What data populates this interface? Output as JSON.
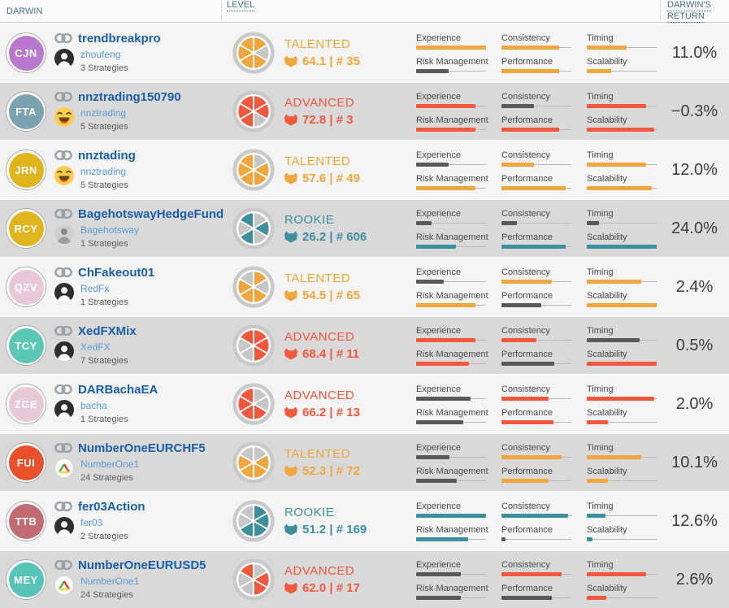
{
  "header": {
    "darwin_label": "DARWIN",
    "level_label": "LEVEL",
    "return_label_line1": "DARWIN'S",
    "return_label_line2": "RETURN"
  },
  "attribute_labels": [
    "Experience",
    "Consistency",
    "Timing",
    "Risk Management",
    "Performance",
    "Scalability"
  ],
  "colors": {
    "talented": "#EFA63C",
    "advanced": "#F3573C",
    "rookie": "#3E8F9E",
    "dark_bar": "#595959",
    "pie_empty": "#C6C6C6",
    "track": "#B9B9B9"
  },
  "rows": [
    {
      "ticker": "CJN",
      "ticker_color": "#B878CC",
      "name": "trendbreakpro",
      "owner": "zhoufeng",
      "strategies": "3 Strategies",
      "avatar": "person",
      "level": {
        "name": "TALENTED",
        "type": "talented",
        "score_text": "64.1 | # 35"
      },
      "pie": [
        1,
        0,
        1,
        1,
        1,
        1
      ],
      "bars": [
        {
          "v": 100,
          "dark": false
        },
        {
          "v": 82,
          "dark": false
        },
        {
          "v": 57,
          "dark": false
        },
        {
          "v": 47,
          "dark": true
        },
        {
          "v": 82,
          "dark": false
        },
        {
          "v": 35,
          "dark": false
        }
      ],
      "return": "11.0%"
    },
    {
      "ticker": "FTA",
      "ticker_color": "#7BA3AF",
      "name": "nnztrading150790",
      "owner": "nnztrading",
      "strategies": "5 Strategies",
      "avatar": "emoji",
      "level": {
        "name": "ADVANCED",
        "type": "advanced",
        "score_text": "72.8 | # 3"
      },
      "pie": [
        1,
        1,
        0,
        1,
        1,
        1
      ],
      "bars": [
        {
          "v": 85,
          "dark": false
        },
        {
          "v": 47,
          "dark": true
        },
        {
          "v": 85,
          "dark": false
        },
        {
          "v": 85,
          "dark": false
        },
        {
          "v": 82,
          "dark": false
        },
        {
          "v": 97,
          "dark": false
        }
      ],
      "return": "−0.3%"
    },
    {
      "ticker": "JRN",
      "ticker_color": "#E0B41C",
      "name": "nnztading",
      "owner": "nnztrading",
      "strategies": "5 Strategies",
      "avatar": "emoji",
      "level": {
        "name": "TALENTED",
        "type": "talented",
        "score_text": "57.6 | # 49"
      },
      "pie": [
        0,
        1,
        1,
        1,
        1,
        1
      ],
      "bars": [
        {
          "v": 47,
          "dark": true
        },
        {
          "v": 47,
          "dark": false
        },
        {
          "v": 85,
          "dark": false
        },
        {
          "v": 85,
          "dark": false
        },
        {
          "v": 92,
          "dark": false
        },
        {
          "v": 93,
          "dark": false
        }
      ],
      "return": "12.0%"
    },
    {
      "ticker": "RCY",
      "ticker_color": "#E0B41C",
      "name": "BagehotswayHedgeFund",
      "owner": "Bagehotsway",
      "strategies": "1 Strategies",
      "avatar": "photo",
      "level": {
        "name": "ROOKIE",
        "type": "rookie",
        "score_text": "26.2 | # 606"
      },
      "pie": [
        0,
        1,
        0,
        1,
        0,
        1
      ],
      "bars": [
        {
          "v": 22,
          "dark": true
        },
        {
          "v": 22,
          "dark": true
        },
        {
          "v": 17,
          "dark": true
        },
        {
          "v": 57,
          "dark": false
        },
        {
          "v": 92,
          "dark": false
        },
        {
          "v": 100,
          "dark": false
        }
      ],
      "return": "24.0%"
    },
    {
      "ticker": "QZV",
      "ticker_color": "#E6C8D7",
      "name": "ChFakeout01",
      "owner": "RedFx",
      "strategies": "1 Strategies",
      "avatar": "person",
      "level": {
        "name": "TALENTED",
        "type": "talented",
        "score_text": "54.5 | # 65"
      },
      "pie": [
        1,
        0,
        1,
        1,
        1,
        0
      ],
      "bars": [
        {
          "v": 40,
          "dark": true
        },
        {
          "v": 72,
          "dark": false
        },
        {
          "v": 78,
          "dark": false
        },
        {
          "v": 85,
          "dark": false
        },
        {
          "v": 57,
          "dark": true
        },
        {
          "v": 100,
          "dark": false
        }
      ],
      "return": "2.4%"
    },
    {
      "ticker": "TCY",
      "ticker_color": "#5AC8B5",
      "name": "XedFXMix",
      "owner": "XedFX",
      "strategies": "7 Strategies",
      "avatar": "person",
      "level": {
        "name": "ADVANCED",
        "type": "advanced",
        "score_text": "68.4 | # 11"
      },
      "pie": [
        1,
        1,
        1,
        0,
        0,
        1
      ],
      "bars": [
        {
          "v": 85,
          "dark": false
        },
        {
          "v": 50,
          "dark": false
        },
        {
          "v": 76,
          "dark": true
        },
        {
          "v": 76,
          "dark": false
        },
        {
          "v": 76,
          "dark": true
        },
        {
          "v": 100,
          "dark": false
        }
      ],
      "return": "0.5%"
    },
    {
      "ticker": "ZGE",
      "ticker_color": "#E6C8D7",
      "name": "DARBachaEA",
      "owner": "bacha",
      "strategies": "1 Strategies",
      "avatar": "person",
      "level": {
        "name": "ADVANCED",
        "type": "advanced",
        "score_text": "66.2 | # 13"
      },
      "pie": [
        0,
        0,
        1,
        1,
        1,
        1
      ],
      "bars": [
        {
          "v": 78,
          "dark": true
        },
        {
          "v": 67,
          "dark": false
        },
        {
          "v": 96,
          "dark": false
        },
        {
          "v": 68,
          "dark": true
        },
        {
          "v": 74,
          "dark": false
        },
        {
          "v": 30,
          "dark": false
        }
      ],
      "return": "2.0%"
    },
    {
      "ticker": "FUI",
      "ticker_color": "#E8512C",
      "name": "NumberOneEURCHF5",
      "owner": "NumberOne1",
      "strategies": "24 Strategies",
      "avatar": "chart",
      "level": {
        "name": "TALENTED",
        "type": "talented",
        "score_text": "52.3 | # 72"
      },
      "pie": [
        0,
        1,
        1,
        1,
        1,
        0
      ],
      "bars": [
        {
          "v": 48,
          "dark": true
        },
        {
          "v": 86,
          "dark": false
        },
        {
          "v": 78,
          "dark": false
        },
        {
          "v": 58,
          "dark": true
        },
        {
          "v": 67,
          "dark": false
        },
        {
          "v": 30,
          "dark": false
        }
      ],
      "return": "10.1%"
    },
    {
      "ticker": "TTB",
      "ticker_color": "#C06C70",
      "name": "fer03Action",
      "owner": "fer03",
      "strategies": "2 Strategies",
      "avatar": "person",
      "level": {
        "name": "ROOKIE",
        "type": "rookie",
        "score_text": "51.2 | # 169"
      },
      "pie": [
        1,
        1,
        1,
        1,
        0,
        0
      ],
      "bars": [
        {
          "v": 100,
          "dark": false
        },
        {
          "v": 95,
          "dark": false
        },
        {
          "v": 27,
          "dark": false
        },
        {
          "v": 74,
          "dark": false
        },
        {
          "v": 6,
          "dark": true
        },
        {
          "v": 8,
          "dark": false
        }
      ],
      "return": "12.6%"
    },
    {
      "ticker": "MEY",
      "ticker_color": "#56C5B7",
      "name": "NumberOneEURUSD5",
      "owner": "NumberOne1",
      "strategies": "24 Strategies",
      "avatar": "chart",
      "level": {
        "name": "ADVANCED",
        "type": "advanced",
        "score_text": "62.0 | # 17"
      },
      "pie": [
        0,
        1,
        1,
        0,
        0,
        1
      ],
      "bars": [
        {
          "v": 64,
          "dark": true
        },
        {
          "v": 86,
          "dark": false
        },
        {
          "v": 85,
          "dark": false
        },
        {
          "v": 64,
          "dark": true
        },
        {
          "v": 72,
          "dark": true
        },
        {
          "v": 28,
          "dark": false
        }
      ],
      "return": "2.6%"
    }
  ]
}
